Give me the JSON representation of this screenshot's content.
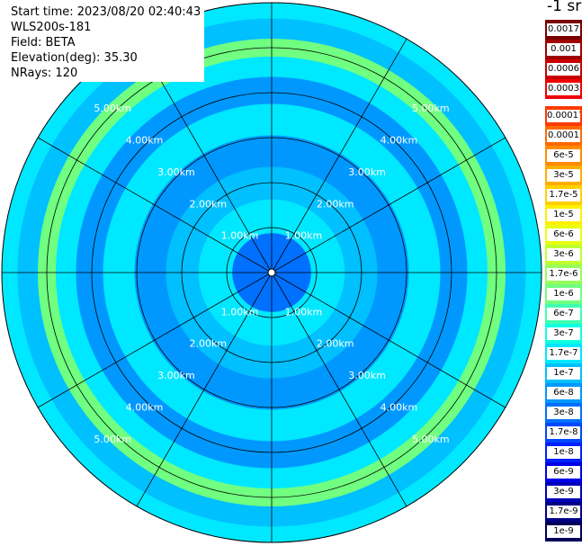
{
  "info": {
    "start_time": "Start time: 2023/08/20 02:40:43",
    "instrument": "WLS200s-181",
    "field": "Field: BETA",
    "elevation": "Elevation(deg): 35.30",
    "nrays": "NRays: 120"
  },
  "legend": {
    "units": "-1 sr",
    "entries": [
      {
        "label": "0.0017",
        "color": "#7a0000"
      },
      {
        "label": "0.001",
        "color": "#a00000"
      },
      {
        "label": "0.0006",
        "color": "#c80000"
      },
      {
        "label": "0.0003",
        "color": "#f00000"
      },
      {
        "label": "0.00017",
        "color": "#ff3a00"
      },
      {
        "label": "0.0001",
        "color": "#ff6a00"
      },
      {
        "label": "6e-5",
        "color": "#ff8c00"
      },
      {
        "label": "3e-5",
        "color": "#ffae00"
      },
      {
        "label": "1.7e-5",
        "color": "#ffd000"
      },
      {
        "label": "1e-5",
        "color": "#fff000"
      },
      {
        "label": "6e-6",
        "color": "#e8ff10"
      },
      {
        "label": "3e-6",
        "color": "#c0ff30"
      },
      {
        "label": "1.7e-6",
        "color": "#98ff58"
      },
      {
        "label": "1e-6",
        "color": "#70ff80"
      },
      {
        "label": "6e-7",
        "color": "#40ffb0"
      },
      {
        "label": "3e-7",
        "color": "#10ffe0"
      },
      {
        "label": "1.7e-7",
        "color": "#00e8ff"
      },
      {
        "label": "1e-7",
        "color": "#00c0ff"
      },
      {
        "label": "6e-8",
        "color": "#0098ff"
      },
      {
        "label": "3e-8",
        "color": "#0070ff"
      },
      {
        "label": "1.7e-8",
        "color": "#0048ff"
      },
      {
        "label": "1e-8",
        "color": "#0020ff"
      },
      {
        "label": "6e-9",
        "color": "#0000e8"
      },
      {
        "label": "3e-9",
        "color": "#0000b8"
      },
      {
        "label": "1.7e-9",
        "color": "#000088"
      },
      {
        "label": "1e-9",
        "color": "#000058"
      }
    ]
  },
  "chart_data": {
    "type": "heatmap",
    "projection": "polar-ppi",
    "field": "BETA",
    "elevation_deg": 35.3,
    "n_rays": 120,
    "range_rings_km": [
      1.0,
      2.0,
      3.0,
      4.0,
      5.0
    ],
    "ring_labels": [
      "1.00km",
      "2.00km",
      "3.00km",
      "4.00km",
      "5.00km"
    ],
    "spokes_deg": [
      0,
      30,
      60,
      90,
      120,
      150,
      180,
      210,
      240,
      270,
      300,
      330
    ],
    "max_range_km": 6.0,
    "radial_profile": [
      {
        "range_km": 0.5,
        "beta": "3e-8"
      },
      {
        "range_km": 1.25,
        "beta": "1.7e-7"
      },
      {
        "range_km": 2.0,
        "beta": "1e-7"
      },
      {
        "range_km": 2.7,
        "beta": "6e-8"
      },
      {
        "range_km": 3.4,
        "beta": "1.7e-7"
      },
      {
        "range_km": 4.1,
        "beta": "6e-8"
      },
      {
        "range_km": 4.6,
        "beta": "1.7e-7"
      },
      {
        "range_km": 5.0,
        "beta": "1e-6"
      },
      {
        "range_km": 5.4,
        "beta": "1e-7"
      },
      {
        "range_km": 5.9,
        "beta": "1.7e-7"
      }
    ]
  }
}
